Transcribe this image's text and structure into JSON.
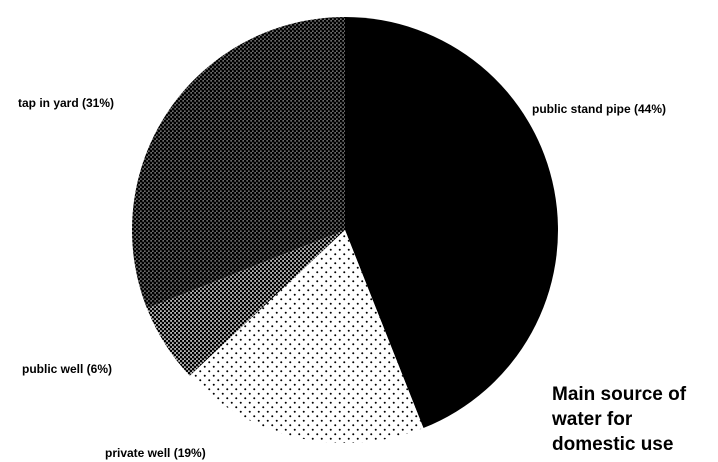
{
  "chart_data": {
    "type": "pie",
    "title": "Main source of water for domestic use",
    "categories": [
      "public stand pipe (44%)",
      "private well (19%)",
      "public well (6%)",
      "tap in yard (31%)"
    ],
    "values": [
      44,
      19,
      6,
      31
    ],
    "colors": [
      "#000000",
      "#ffffff",
      "#b8b8b8",
      "#6a6a6a"
    ]
  }
}
